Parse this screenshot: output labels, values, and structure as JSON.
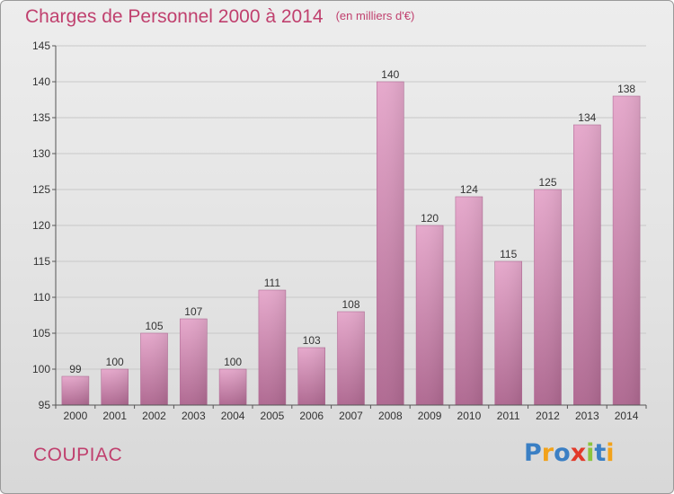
{
  "title": "Charges de Personnel 2000 à 2014",
  "subtitle": "(en milliers d'€)",
  "commune": "COUPIAC",
  "logo": {
    "letters": [
      {
        "ch": "P",
        "color": "#3a7fc4"
      },
      {
        "ch": "r",
        "color": "#f2a21a"
      },
      {
        "ch": "o",
        "color": "#3a7fc4"
      },
      {
        "ch": "x",
        "color": "#e23a2a"
      },
      {
        "ch": "i",
        "color": "#8cc43e"
      },
      {
        "ch": "t",
        "color": "#3a7fc4"
      },
      {
        "ch": "i",
        "color": "#f2a21a"
      }
    ]
  },
  "chart_data": {
    "type": "bar",
    "title": "Charges de Personnel 2000 à 2014",
    "subtitle": "(en milliers d'€)",
    "categories": [
      "2000",
      "2001",
      "2002",
      "2003",
      "2004",
      "2005",
      "2006",
      "2007",
      "2008",
      "2009",
      "2010",
      "2011",
      "2012",
      "2013",
      "2014"
    ],
    "values": [
      99,
      100,
      105,
      107,
      100,
      111,
      103,
      108,
      140,
      120,
      124,
      115,
      125,
      134,
      138
    ],
    "ylim": [
      95,
      145
    ],
    "yticks": [
      95,
      100,
      105,
      110,
      115,
      120,
      125,
      130,
      135,
      140,
      145
    ],
    "grid": true,
    "bar_color": "#d386b2"
  }
}
